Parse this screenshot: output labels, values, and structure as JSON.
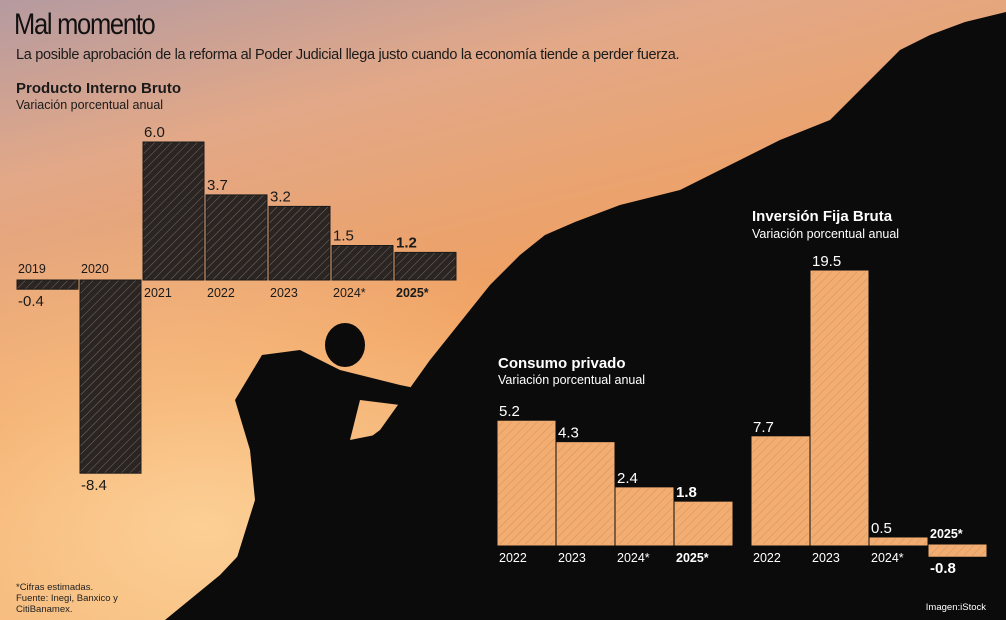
{
  "header": {
    "title": "Mal momento",
    "subtitle": "La posible aprobación de la reforma al Poder Judicial llega justo cuando la economía tiende a perder fuerza."
  },
  "footer": {
    "note": "*Cifras estimadas. Fuente: Inegi, Banxico y CitiBanamex.",
    "credit": "Imagen:iStock"
  },
  "colors": {
    "dark_bar": "#2a2522",
    "orange_bar": "#f2ad72",
    "silhouette": "#0c0b0b"
  },
  "chart_data": [
    {
      "type": "bar",
      "title": "Producto Interno Bruto",
      "subtitle": "Variación porcentual anual",
      "categories": [
        "2019",
        "2020",
        "2021",
        "2022",
        "2023",
        "2024*",
        "2025*"
      ],
      "values": [
        -0.4,
        -8.4,
        6.0,
        3.7,
        3.2,
        1.5,
        1.2
      ],
      "value_labels": [
        "-0.4",
        "-8.4",
        "6.0",
        "3.7",
        "3.2",
        "1.5",
        "1.2"
      ],
      "bold": [
        false,
        false,
        false,
        false,
        false,
        false,
        true
      ]
    },
    {
      "type": "bar",
      "title": "Consumo privado",
      "subtitle": "Variación porcentual anual",
      "categories": [
        "2022",
        "2023",
        "2024*",
        "2025*"
      ],
      "values": [
        5.2,
        4.3,
        2.4,
        1.8
      ],
      "value_labels": [
        "5.2",
        "4.3",
        "2.4",
        "1.8"
      ],
      "bold": [
        false,
        false,
        false,
        true
      ]
    },
    {
      "type": "bar",
      "title": "Inversión Fija Bruta",
      "subtitle": "Variación porcentual anual",
      "categories": [
        "2022",
        "2023",
        "2024*",
        "2025*"
      ],
      "values": [
        7.7,
        19.5,
        0.5,
        -0.8
      ],
      "value_labels": [
        "7.7",
        "19.5",
        "0.5",
        "-0.8"
      ],
      "bold": [
        false,
        false,
        false,
        true
      ]
    }
  ]
}
